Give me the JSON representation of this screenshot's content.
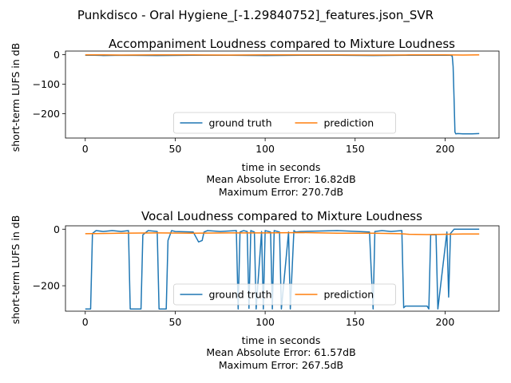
{
  "figure": {
    "suptitle": "Punkdisco - Oral Hygiene_[-1.29840752]_features.json_SVR"
  },
  "chart_data": [
    {
      "type": "line",
      "title": "Accompaniment Loudness compared to Mixture Loudness",
      "xlabel": "time in seconds",
      "ylabel": "short-term LUFS in dB",
      "xlim": [
        -11,
        230
      ],
      "ylim": [
        -282,
        12
      ],
      "xticks": [
        0,
        50,
        100,
        150,
        200
      ],
      "yticks": [
        0,
        -100,
        -200
      ],
      "legend": "lower center",
      "legend_columns": 2,
      "metrics": [
        "Mean Absolute Error: 16.82dB",
        "Maximum Error: 270.7dB"
      ],
      "series": [
        {
          "name": "ground truth",
          "color": "#1f77b4",
          "x": [
            0,
            5,
            10,
            20,
            40,
            60,
            80,
            100,
            120,
            140,
            160,
            180,
            195,
            203,
            204,
            204.5,
            205,
            205.5,
            206,
            207,
            210,
            215,
            219
          ],
          "y": [
            -2,
            -2,
            -3,
            -2,
            -3,
            -2,
            -2,
            -3,
            -2,
            -2,
            -3,
            -2,
            -2,
            -2,
            -5,
            -40,
            -150,
            -262,
            -268,
            -267,
            -268,
            -268,
            -267
          ]
        },
        {
          "name": "prediction",
          "color": "#ff7f0e",
          "x": [
            0,
            10,
            20,
            40,
            60,
            80,
            100,
            120,
            140,
            160,
            180,
            200,
            210,
            219
          ],
          "y": [
            -1,
            -1,
            -1.5,
            -1,
            -1,
            -1.5,
            -1,
            -1,
            -1,
            -1.5,
            -1,
            -1,
            -1.5,
            -1
          ]
        }
      ]
    },
    {
      "type": "line",
      "title": "Vocal Loudness compared to Mixture Loudness",
      "xlabel": "time in seconds",
      "ylabel": "short-term LUFS in dB",
      "xlim": [
        -11,
        230
      ],
      "ylim": [
        -290,
        12
      ],
      "xticks": [
        0,
        50,
        100,
        150,
        200
      ],
      "yticks": [
        0,
        -200
      ],
      "legend": "lower center",
      "legend_columns": 2,
      "metrics": [
        "Mean Absolute Error: 61.57dB",
        "Maximum Error: 267.5dB"
      ],
      "series": [
        {
          "name": "ground truth",
          "color": "#1f77b4",
          "x": [
            0,
            3,
            4,
            6,
            10,
            15,
            20,
            24,
            25,
            31,
            32,
            35,
            40,
            41,
            45,
            46,
            48,
            50,
            60,
            63,
            65,
            66,
            68,
            75,
            84,
            85,
            86,
            88,
            90,
            91,
            92,
            94,
            95,
            98,
            99,
            100,
            103,
            104,
            105,
            108,
            109,
            113,
            114,
            116,
            117,
            120,
            140,
            158,
            159,
            160,
            161,
            165,
            170,
            176,
            177,
            178,
            190,
            191,
            192,
            195,
            196,
            201,
            202,
            203,
            205,
            219
          ],
          "y": [
            -282,
            -282,
            -15,
            -5,
            -8,
            -5,
            -8,
            -5,
            -282,
            -282,
            -20,
            -5,
            -8,
            -282,
            -282,
            -40,
            -5,
            -8,
            -10,
            -45,
            -40,
            -10,
            -5,
            -8,
            -5,
            -282,
            -10,
            -5,
            -8,
            -280,
            -5,
            -10,
            -282,
            -8,
            -282,
            -5,
            -10,
            -282,
            -5,
            -10,
            -282,
            -10,
            -282,
            -5,
            -10,
            -8,
            -5,
            -10,
            -150,
            -282,
            -8,
            -5,
            -8,
            -5,
            -278,
            -272,
            -272,
            -282,
            -20,
            -20,
            -282,
            -10,
            -240,
            -15,
            0,
            0
          ]
        },
        {
          "name": "prediction",
          "color": "#ff7f0e",
          "x": [
            0,
            20,
            40,
            60,
            80,
            100,
            120,
            140,
            160,
            175,
            180,
            190,
            200,
            210,
            219
          ],
          "y": [
            -16,
            -14,
            -13,
            -14,
            -13,
            -13,
            -12,
            -14,
            -14,
            -16,
            -18,
            -19,
            -18,
            -17,
            -17
          ]
        }
      ]
    }
  ]
}
